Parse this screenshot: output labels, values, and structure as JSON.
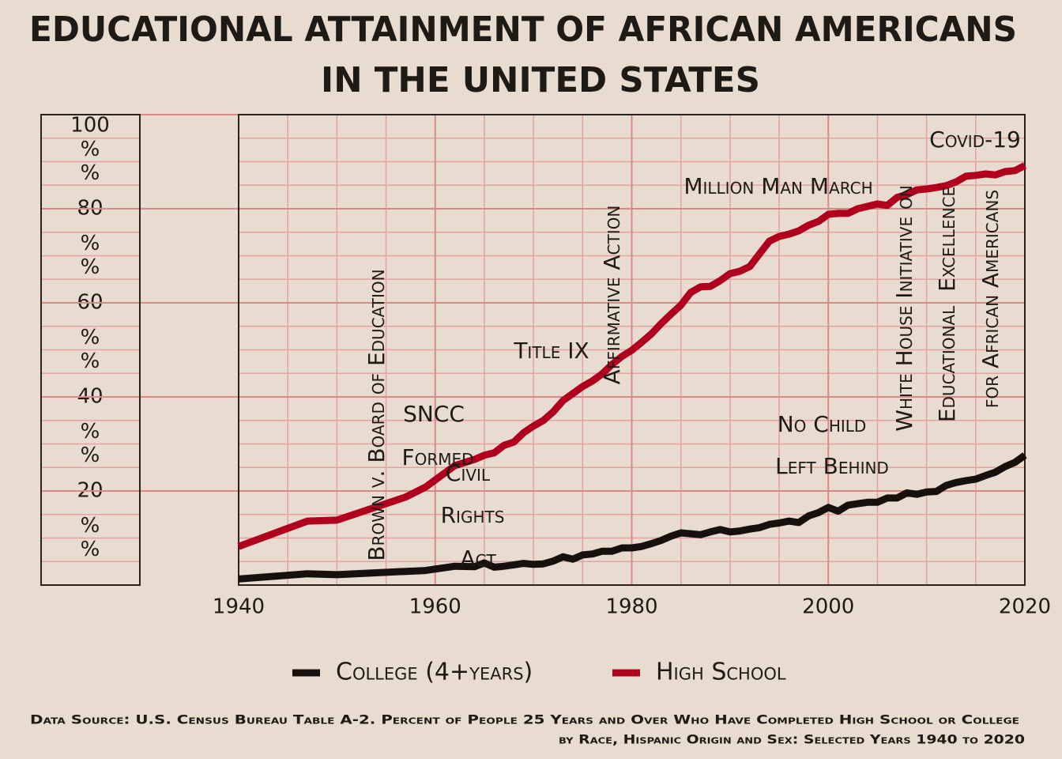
{
  "chart_data": {
    "type": "line",
    "title": [
      "Educational Attainment of African Americans",
      "in the United States"
    ],
    "x": [
      1940,
      1947,
      1950,
      1957,
      1959,
      1962,
      1964,
      1965,
      1966,
      1967,
      1968,
      1969,
      1970,
      1971,
      1972,
      1973,
      1974,
      1975,
      1976,
      1977,
      1978,
      1979,
      1980,
      1981,
      1982,
      1983,
      1984,
      1985,
      1986,
      1987,
      1988,
      1989,
      1990,
      1991,
      1992,
      1993,
      1994,
      1995,
      1996,
      1997,
      1998,
      1999,
      2000,
      2001,
      2002,
      2003,
      2004,
      2005,
      2006,
      2007,
      2008,
      2009,
      2010,
      2011,
      2012,
      2013,
      2014,
      2015,
      2016,
      2017,
      2018,
      2019,
      2020
    ],
    "series": [
      {
        "name": "College (4+years)",
        "color": "#17110d",
        "values": [
          1.3,
          2.4,
          2.2,
          2.9,
          3.1,
          4.0,
          3.9,
          4.7,
          3.8,
          4.0,
          4.3,
          4.6,
          4.4,
          4.5,
          5.1,
          6.0,
          5.5,
          6.4,
          6.6,
          7.2,
          7.2,
          7.9,
          7.9,
          8.2,
          8.8,
          9.5,
          10.4,
          11.1,
          10.9,
          10.7,
          11.3,
          11.8,
          11.3,
          11.5,
          11.9,
          12.2,
          12.9,
          13.2,
          13.6,
          13.3,
          14.7,
          15.4,
          16.5,
          15.7,
          17.0,
          17.3,
          17.6,
          17.6,
          18.5,
          18.5,
          19.6,
          19.3,
          19.8,
          19.9,
          21.2,
          21.8,
          22.2,
          22.5,
          23.3,
          24.0,
          25.2,
          26.1,
          27.6
        ]
      },
      {
        "name": "High School",
        "color": "#b0001e",
        "values": [
          8.2,
          13.6,
          13.8,
          18.7,
          20.8,
          25.4,
          26.7,
          27.6,
          28.1,
          29.7,
          30.4,
          32.4,
          33.8,
          35.0,
          36.8,
          39.2,
          40.7,
          42.2,
          43.4,
          44.9,
          46.9,
          48.6,
          49.9,
          51.6,
          53.4,
          55.6,
          57.6,
          59.5,
          62.2,
          63.4,
          63.5,
          64.7,
          66.2,
          66.7,
          67.7,
          70.4,
          73.1,
          74.1,
          74.6,
          75.3,
          76.5,
          77.3,
          78.8,
          79.0,
          79.0,
          80.0,
          80.5,
          81.0,
          80.7,
          82.4,
          83.0,
          84.0,
          84.2,
          84.5,
          84.9,
          85.7,
          86.9,
          87.1,
          87.4,
          87.2,
          87.9,
          88.1,
          89.2
        ]
      }
    ],
    "xlim": [
      1940,
      2020
    ],
    "xticks": [
      1940,
      1960,
      1980,
      2000,
      2020
    ],
    "xminorticks": [
      1945,
      1950,
      1955,
      1965,
      1970,
      1975,
      1985,
      1990,
      1995,
      2005,
      2010,
      2015
    ],
    "ylim": [
      0,
      100
    ],
    "yticks": [
      100,
      {
        "value": 92.5,
        "label": "%"
      },
      {
        "value": 87.5,
        "label": "%"
      },
      80,
      {
        "value": 72.5,
        "label": "%"
      },
      {
        "value": 67.5,
        "label": "%"
      },
      60,
      {
        "value": 52.5,
        "label": "%"
      },
      {
        "value": 47.5,
        "label": "%"
      },
      40,
      {
        "value": 32.5,
        "label": "%"
      },
      {
        "value": 27.5,
        "label": "%"
      },
      20,
      {
        "value": 12.5,
        "label": "%"
      },
      {
        "value": 7.5,
        "label": "%"
      }
    ],
    "yminorticks": [
      5,
      10,
      15,
      25,
      30,
      35,
      45,
      50,
      55,
      65,
      70,
      75,
      85,
      90,
      95
    ],
    "grid": true,
    "legend": "bottom",
    "annotations": [
      "Brown v. Board of Education",
      "SNCC",
      "Formed",
      "Civil",
      "Rights",
      "Act",
      "Title IX",
      "Affirmative Action",
      "Million Man March",
      "No Child",
      "Left Behind",
      "White House Initiative on",
      "Educational  Excellence",
      "for African Americans",
      "Covid-19"
    ],
    "source": [
      "Data Source: U.S. Census Bureau Table  A-2.  Percent of People 25 Years and Over Who Have Completed High School or College",
      "by Race, Hispanic Origin and Sex: Selected Years 1940 to 2020"
    ]
  }
}
